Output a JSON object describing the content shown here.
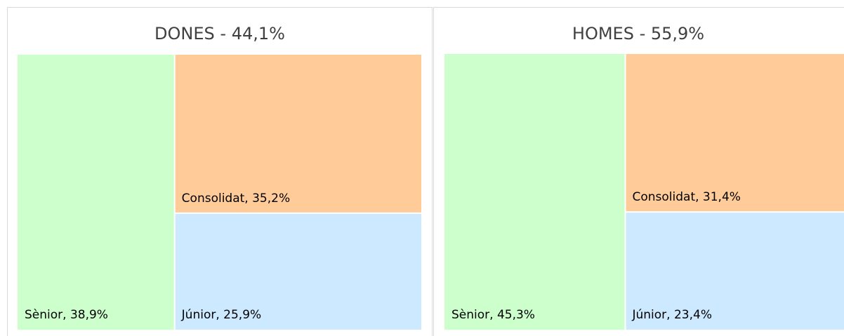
{
  "chart_data": [
    {
      "type": "treemap",
      "title": "DONES - 44,1%",
      "values": [
        38.9,
        35.2,
        25.9
      ],
      "value_labels": [
        "Sènior, 38,9%",
        "Consolidat, 35,2%",
        "Júnior, 25,9%"
      ],
      "colors": [
        "#ccffcc",
        "#ffcc99",
        "#cce9ff"
      ]
    },
    {
      "type": "treemap",
      "title": "HOMES - 55,9%",
      "values": [
        45.3,
        31.4,
        23.4
      ],
      "value_labels": [
        "Sènior, 45,3%",
        "Consolidat, 31,4%",
        "Júnior, 23,4%"
      ],
      "colors": [
        "#ccffcc",
        "#ffcc99",
        "#cce9ff"
      ]
    }
  ]
}
